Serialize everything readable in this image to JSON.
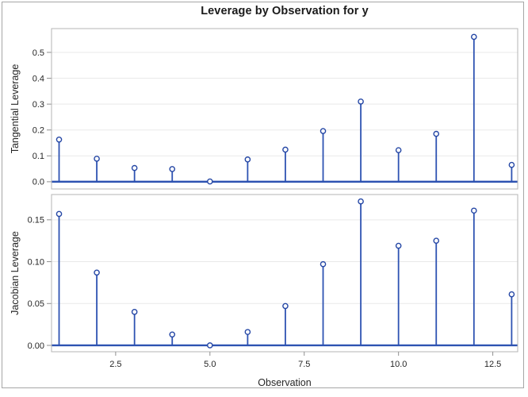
{
  "title": "Leverage by Observation for y",
  "x_axis": {
    "label": "Observation",
    "ticks": [
      2.5,
      5.0,
      7.5,
      10.0,
      12.5
    ],
    "tick_labels": [
      "2.5",
      "5.0",
      "7.5",
      "10.0",
      "12.5"
    ],
    "lim": [
      0.8,
      13.16
    ]
  },
  "colors": {
    "needle": "#2e53b2",
    "marker_stroke": "#2547a5",
    "marker_fill": "#ffffff",
    "baseline": "#2e53b2",
    "grid": "#e9e9e9",
    "panel_border": "#b5b5b5",
    "figure_border": "#a6a6a6",
    "tick_mark": "#8f8f8f",
    "text": "#262626",
    "title_text": "#1a1a1a",
    "panel_fill": "#ffffff"
  },
  "chart_data": [
    {
      "type": "stem",
      "title": "Leverage by Observation for y",
      "ylabel": "Tangential Leverage",
      "xlabel": "Observation",
      "x": [
        1,
        2,
        3,
        4,
        5,
        6,
        7,
        8,
        9,
        10,
        11,
        12,
        13
      ],
      "y": [
        0.163,
        0.089,
        0.053,
        0.049,
        0.001,
        0.086,
        0.124,
        0.196,
        0.31,
        0.122,
        0.185,
        0.56,
        0.065
      ],
      "yticks": [
        0.0,
        0.1,
        0.2,
        0.3,
        0.4,
        0.5
      ],
      "ytick_labels": [
        "0.0",
        "0.1",
        "0.2",
        "0.3",
        "0.4",
        "0.5"
      ],
      "ylim": [
        -0.028,
        0.592
      ],
      "xlim": [
        0.8,
        13.16
      ],
      "grid": "horizontal-on",
      "legend": "none",
      "marker": "open-circle"
    },
    {
      "type": "stem",
      "title": "Leverage by Observation for y",
      "ylabel": "Jacobian Leverage",
      "xlabel": "Observation",
      "x": [
        1,
        2,
        3,
        4,
        5,
        6,
        7,
        8,
        9,
        10,
        11,
        12,
        13
      ],
      "y": [
        0.157,
        0.087,
        0.04,
        0.013,
        0.0,
        0.016,
        0.047,
        0.097,
        0.172,
        0.119,
        0.125,
        0.161,
        0.061
      ],
      "yticks": [
        0.0,
        0.05,
        0.1,
        0.15
      ],
      "ytick_labels": [
        "0.00",
        "0.05",
        "0.10",
        "0.15"
      ],
      "ylim": [
        -0.0076,
        0.1802
      ],
      "xlim": [
        0.8,
        13.16
      ],
      "grid": "horizontal-on",
      "legend": "none",
      "marker": "open-circle"
    }
  ]
}
